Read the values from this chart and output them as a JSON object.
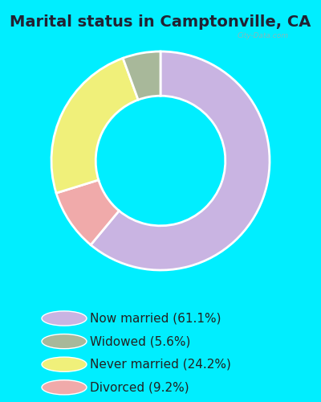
{
  "title": "Marital status in Camptonville, CA",
  "categories": [
    "Now married",
    "Widowed",
    "Never married",
    "Divorced"
  ],
  "values": [
    61.1,
    5.6,
    24.2,
    9.2
  ],
  "colors": [
    "#c9b4e2",
    "#a8b89a",
    "#f0f07a",
    "#f0aaaa"
  ],
  "legend_labels": [
    "Now married (61.1%)",
    "Widowed (5.6%)",
    "Never married (24.2%)",
    "Divorced (9.2%)"
  ],
  "bg_outer": "#00eeff",
  "bg_chart": "#e2f2e8",
  "watermark": "City-Data.com",
  "title_fontsize": 14,
  "legend_fontsize": 11,
  "title_color": "#222233",
  "donut_hole": 0.58,
  "plot_order": [
    0,
    3,
    2,
    1
  ],
  "start_angle": 90
}
